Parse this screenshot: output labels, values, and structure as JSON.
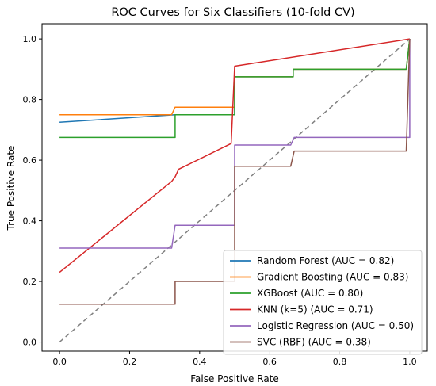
{
  "chart_data": {
    "type": "line",
    "title": "ROC Curves for Six Classifiers (10-fold CV)",
    "xlabel": "False Positive Rate",
    "ylabel": "True Positive Rate",
    "xlim": [
      -0.05,
      1.05
    ],
    "ylim": [
      -0.03,
      1.05
    ],
    "xticks": [
      "0.0",
      "0.2",
      "0.4",
      "0.6",
      "0.8",
      "1.0"
    ],
    "yticks": [
      "0.0",
      "0.2",
      "0.4",
      "0.6",
      "0.8",
      "1.0"
    ],
    "grid": false,
    "legend_position": "lower-right",
    "diagonal": {
      "points": [
        [
          0,
          0
        ],
        [
          1,
          1
        ]
      ],
      "color": "#808080",
      "style": "dashed"
    },
    "series": [
      {
        "name": "Random Forest (AUC = 0.82)",
        "color": "#1f77b4",
        "points": [
          [
            0,
            0.725
          ],
          [
            0.33,
            0.75
          ],
          [
            0.5,
            0.75
          ],
          [
            0.5,
            0.875
          ],
          [
            0.667,
            0.875
          ],
          [
            0.667,
            0.9
          ],
          [
            0.99,
            0.9
          ],
          [
            1.0,
            1.0
          ]
        ]
      },
      {
        "name": "Gradient Boosting (AUC = 0.83)",
        "color": "#ff7f0e",
        "points": [
          [
            0,
            0.75
          ],
          [
            0.32,
            0.75
          ],
          [
            0.33,
            0.775
          ],
          [
            0.5,
            0.775
          ],
          [
            0.5,
            0.875
          ],
          [
            0.667,
            0.875
          ],
          [
            0.667,
            0.9
          ],
          [
            0.99,
            0.9
          ],
          [
            1.0,
            1.0
          ]
        ]
      },
      {
        "name": "XGBoost (AUC = 0.80)",
        "color": "#2ca02c",
        "points": [
          [
            0,
            0.675
          ],
          [
            0.33,
            0.675
          ],
          [
            0.33,
            0.75
          ],
          [
            0.5,
            0.75
          ],
          [
            0.5,
            0.875
          ],
          [
            0.667,
            0.875
          ],
          [
            0.667,
            0.9
          ],
          [
            0.99,
            0.9
          ],
          [
            1.0,
            1.0
          ]
        ]
      },
      {
        "name": "KNN (k=5) (AUC = 0.71)",
        "color": "#d62728",
        "points": [
          [
            0,
            0.23
          ],
          [
            0.32,
            0.53
          ],
          [
            0.33,
            0.545
          ],
          [
            0.34,
            0.57
          ],
          [
            0.49,
            0.655
          ],
          [
            0.5,
            0.91
          ],
          [
            1.0,
            1.0
          ]
        ]
      },
      {
        "name": "Logistic Regression (AUC = 0.50)",
        "color": "#9467bd",
        "points": [
          [
            0,
            0.31
          ],
          [
            0.32,
            0.31
          ],
          [
            0.33,
            0.385
          ],
          [
            0.5,
            0.385
          ],
          [
            0.5,
            0.65
          ],
          [
            0.66,
            0.65
          ],
          [
            0.67,
            0.675
          ],
          [
            1.0,
            0.675
          ],
          [
            1.0,
            1.0
          ]
        ]
      },
      {
        "name": "SVC (RBF) (AUC = 0.38)",
        "color": "#8c564b",
        "points": [
          [
            0,
            0.125
          ],
          [
            0.33,
            0.125
          ],
          [
            0.33,
            0.2
          ],
          [
            0.5,
            0.2
          ],
          [
            0.5,
            0.58
          ],
          [
            0.66,
            0.58
          ],
          [
            0.67,
            0.63
          ],
          [
            0.99,
            0.63
          ],
          [
            1.0,
            1.0
          ]
        ]
      }
    ]
  }
}
